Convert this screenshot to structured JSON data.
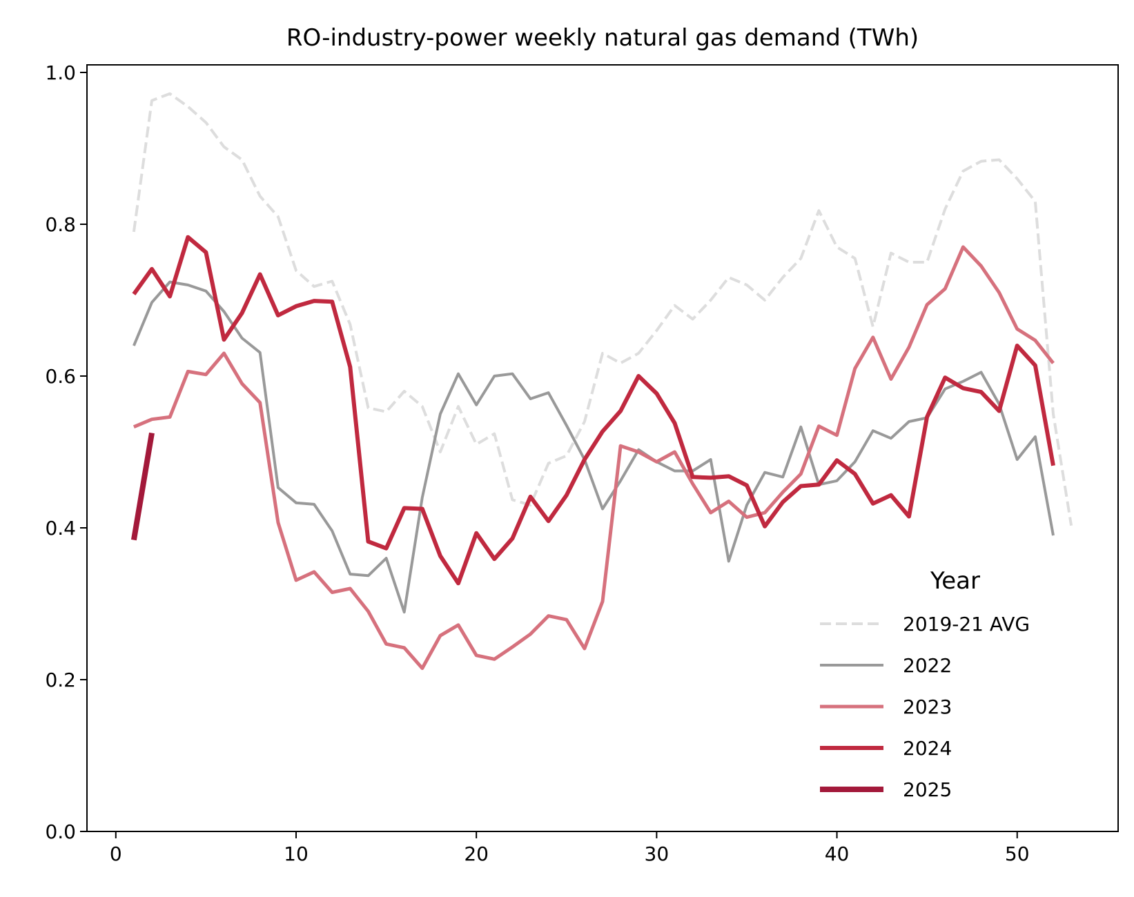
{
  "chart_data": {
    "type": "line",
    "title": "RO-industry-power weekly natural gas demand (TWh)",
    "xlabel": "",
    "ylabel": "",
    "xlim": [
      -1.6,
      55.6
    ],
    "ylim": [
      0.0,
      1.01
    ],
    "xticks": [
      0,
      10,
      20,
      30,
      40,
      50
    ],
    "yticks": [
      0.0,
      0.2,
      0.4,
      0.6,
      0.8,
      1.0
    ],
    "xtick_labels": [
      "0",
      "10",
      "20",
      "30",
      "40",
      "50"
    ],
    "ytick_labels": [
      "0.0",
      "0.2",
      "0.4",
      "0.6",
      "0.8",
      "1.0"
    ],
    "grid": false,
    "legend": {
      "title": "Year",
      "placement": "lower-right"
    },
    "series": [
      {
        "name": "2019-21 AVG",
        "color": "#dddddd",
        "style": "dashed",
        "width": 4,
        "x": [
          1,
          2,
          3,
          4,
          5,
          6,
          7,
          8,
          9,
          10,
          11,
          12,
          13,
          14,
          15,
          16,
          17,
          18,
          19,
          20,
          21,
          22,
          23,
          24,
          25,
          26,
          27,
          28,
          29,
          30,
          31,
          32,
          33,
          34,
          35,
          36,
          37,
          38,
          39,
          40,
          41,
          42,
          43,
          44,
          45,
          46,
          47,
          48,
          49,
          50,
          51,
          52,
          53
        ],
        "values": [
          0.79,
          0.963,
          0.972,
          0.955,
          0.934,
          0.902,
          0.885,
          0.837,
          0.81,
          0.739,
          0.718,
          0.725,
          0.668,
          0.558,
          0.553,
          0.58,
          0.56,
          0.5,
          0.56,
          0.51,
          0.524,
          0.437,
          0.43,
          0.485,
          0.495,
          0.54,
          0.63,
          0.617,
          0.63,
          0.66,
          0.693,
          0.675,
          0.7,
          0.73,
          0.72,
          0.7,
          0.73,
          0.755,
          0.818,
          0.77,
          0.755,
          0.665,
          0.762,
          0.75,
          0.75,
          0.82,
          0.87,
          0.883,
          0.885,
          0.86,
          0.83,
          0.55,
          0.403
        ]
      },
      {
        "name": "2022",
        "color": "#999999",
        "style": "solid",
        "width": 4,
        "x": [
          1,
          2,
          3,
          4,
          5,
          6,
          7,
          8,
          9,
          10,
          11,
          12,
          13,
          14,
          15,
          16,
          17,
          18,
          19,
          20,
          21,
          22,
          23,
          24,
          25,
          26,
          27,
          28,
          29,
          30,
          31,
          32,
          33,
          34,
          35,
          36,
          37,
          38,
          39,
          40,
          41,
          42,
          43,
          44,
          45,
          46,
          47,
          48,
          49,
          50,
          51,
          52
        ],
        "values": [
          0.64,
          0.697,
          0.724,
          0.72,
          0.712,
          0.685,
          0.65,
          0.631,
          0.453,
          0.433,
          0.431,
          0.396,
          0.339,
          0.337,
          0.36,
          0.289,
          0.44,
          0.55,
          0.603,
          0.562,
          0.6,
          0.603,
          0.57,
          0.578,
          0.535,
          0.49,
          0.425,
          0.462,
          0.503,
          0.487,
          0.475,
          0.475,
          0.49,
          0.356,
          0.43,
          0.473,
          0.467,
          0.533,
          0.457,
          0.462,
          0.487,
          0.528,
          0.518,
          0.54,
          0.545,
          0.583,
          0.593,
          0.605,
          0.563,
          0.49,
          0.52,
          0.39
        ]
      },
      {
        "name": "2023",
        "color": "#d6717d",
        "style": "solid",
        "width": 5,
        "x": [
          1,
          2,
          3,
          4,
          5,
          6,
          7,
          8,
          9,
          10,
          11,
          12,
          13,
          14,
          15,
          16,
          17,
          18,
          19,
          20,
          21,
          22,
          23,
          24,
          25,
          26,
          27,
          28,
          29,
          30,
          31,
          32,
          33,
          34,
          35,
          36,
          37,
          38,
          39,
          40,
          41,
          42,
          43,
          44,
          45,
          46,
          47,
          48,
          49,
          50,
          51,
          52
        ],
        "values": [
          0.533,
          0.543,
          0.546,
          0.606,
          0.602,
          0.63,
          0.59,
          0.565,
          0.407,
          0.331,
          0.342,
          0.315,
          0.32,
          0.29,
          0.247,
          0.242,
          0.215,
          0.258,
          0.272,
          0.232,
          0.227,
          0.243,
          0.26,
          0.284,
          0.279,
          0.241,
          0.303,
          0.508,
          0.5,
          0.487,
          0.5,
          0.458,
          0.42,
          0.435,
          0.414,
          0.42,
          0.447,
          0.471,
          0.534,
          0.522,
          0.61,
          0.651,
          0.596,
          0.638,
          0.694,
          0.715,
          0.77,
          0.745,
          0.71,
          0.662,
          0.647,
          0.617
        ]
      },
      {
        "name": "2024",
        "color": "#c0293f",
        "style": "solid",
        "width": 6,
        "x": [
          1,
          2,
          3,
          4,
          5,
          6,
          7,
          8,
          9,
          10,
          11,
          12,
          13,
          14,
          15,
          16,
          17,
          18,
          19,
          20,
          21,
          22,
          23,
          24,
          25,
          26,
          27,
          28,
          29,
          30,
          31,
          32,
          33,
          34,
          35,
          36,
          37,
          38,
          39,
          40,
          41,
          42,
          43,
          44,
          45,
          46,
          47,
          48,
          49,
          50,
          51,
          52
        ],
        "values": [
          0.708,
          0.741,
          0.705,
          0.783,
          0.763,
          0.648,
          0.683,
          0.734,
          0.68,
          0.692,
          0.699,
          0.698,
          0.612,
          0.382,
          0.373,
          0.426,
          0.425,
          0.363,
          0.327,
          0.393,
          0.359,
          0.386,
          0.441,
          0.409,
          0.443,
          0.49,
          0.527,
          0.554,
          0.6,
          0.577,
          0.538,
          0.467,
          0.466,
          0.468,
          0.456,
          0.402,
          0.434,
          0.455,
          0.457,
          0.489,
          0.471,
          0.432,
          0.443,
          0.415,
          0.546,
          0.598,
          0.584,
          0.579,
          0.554,
          0.64,
          0.614,
          0.482
        ]
      },
      {
        "name": "2025",
        "color": "#a3193a",
        "style": "solid",
        "width": 8,
        "x": [
          1,
          2
        ],
        "values": [
          0.384,
          0.525
        ]
      }
    ]
  }
}
